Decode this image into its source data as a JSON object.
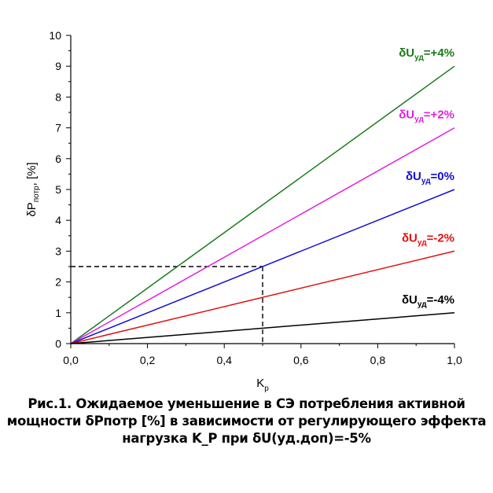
{
  "chart_data": {
    "type": "line",
    "title": "",
    "xlabel": "K",
    "xlabel_sub": "р",
    "ylabel": "δP",
    "ylabel_sub": "потр",
    "ylabel_unit": ", [%]",
    "xlim": [
      0,
      1.0
    ],
    "ylim": [
      0,
      10
    ],
    "x_ticks": [
      0,
      0.2,
      0.4,
      0.6,
      0.8,
      1.0
    ],
    "x_tick_labels": [
      "0,0",
      "0,2",
      "0,4",
      "0,6",
      "0,8",
      "1,0"
    ],
    "y_ticks": [
      0,
      1,
      2,
      3,
      4,
      5,
      6,
      7,
      8,
      9,
      10
    ],
    "y_tick_labels": [
      "0",
      "1",
      "2",
      "3",
      "4",
      "5",
      "6",
      "7",
      "8",
      "9",
      "10"
    ],
    "series": [
      {
        "name": "+4%",
        "x": [
          0,
          1.0
        ],
        "y": [
          0,
          9
        ],
        "color": "#1a7a1a",
        "label_prefix": "δU",
        "label_sub": "уд",
        "label_suffix": "=+4%"
      },
      {
        "name": "+2%",
        "x": [
          0,
          1.0
        ],
        "y": [
          0,
          7
        ],
        "color": "#e020e0",
        "label_prefix": "δU",
        "label_sub": "уд",
        "label_suffix": "=+2%"
      },
      {
        "name": "0%",
        "x": [
          0,
          1.0
        ],
        "y": [
          0,
          5
        ],
        "color": "#1010d0",
        "label_prefix": "δU",
        "label_sub": "уд",
        "label_suffix": "=0%"
      },
      {
        "name": "-2%",
        "x": [
          0,
          1.0
        ],
        "y": [
          0,
          3
        ],
        "color": "#e01010",
        "label_prefix": "δU",
        "label_sub": "уд",
        "label_suffix": "=-2%"
      },
      {
        "name": "-4%",
        "x": [
          0,
          1.0
        ],
        "y": [
          0,
          1
        ],
        "color": "#000000",
        "label_prefix": "δU",
        "label_sub": "уд",
        "label_suffix": "=-4%"
      }
    ],
    "reference": {
      "x": 0.5,
      "y": 2.5,
      "style": "dashed"
    }
  },
  "caption": {
    "line1": "Рис.1. Ожидаемое уменьшение в СЭ потребления активной",
    "line2": "мощности δPпотр [%] в зависимости от регулирующего эффекта",
    "line3": "нагрузка K_P при δU(уд.доп)=-5%"
  }
}
